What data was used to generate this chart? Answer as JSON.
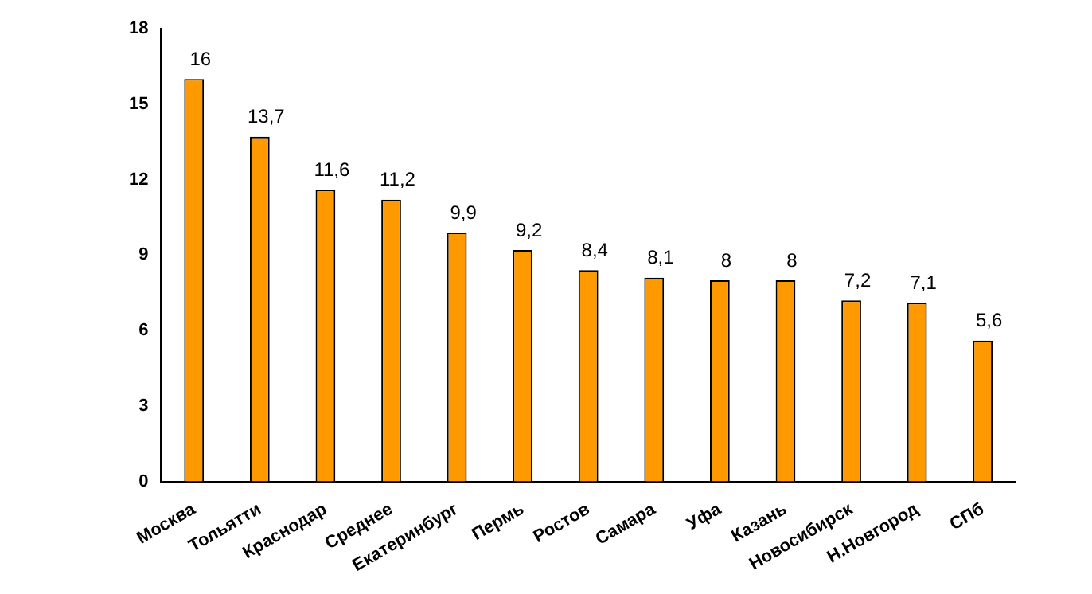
{
  "chart_data": {
    "type": "bar",
    "categories": [
      "Москва",
      "Тольятти",
      "Краснодар",
      "Среднее",
      "Екатеринбург",
      "Пермь",
      "Ростов",
      "Самара",
      "Уфа",
      "Казань",
      "Новосибирск",
      "Н.Новгород",
      "СПб"
    ],
    "values": [
      16,
      13.7,
      11.6,
      11.2,
      9.9,
      9.2,
      8.4,
      8.1,
      8,
      8,
      7.2,
      7.1,
      5.6
    ],
    "value_labels": [
      "16",
      "13,7",
      "11,6",
      "11,2",
      "9,9",
      "9,2",
      "8,4",
      "8,1",
      "8",
      "8",
      "7,2",
      "7,1",
      "5,6"
    ],
    "color": "#ff9900",
    "ylim": [
      0,
      18
    ],
    "yticks": [
      0,
      3,
      6,
      9,
      12,
      15,
      18
    ],
    "grid": false,
    "legend": false
  }
}
